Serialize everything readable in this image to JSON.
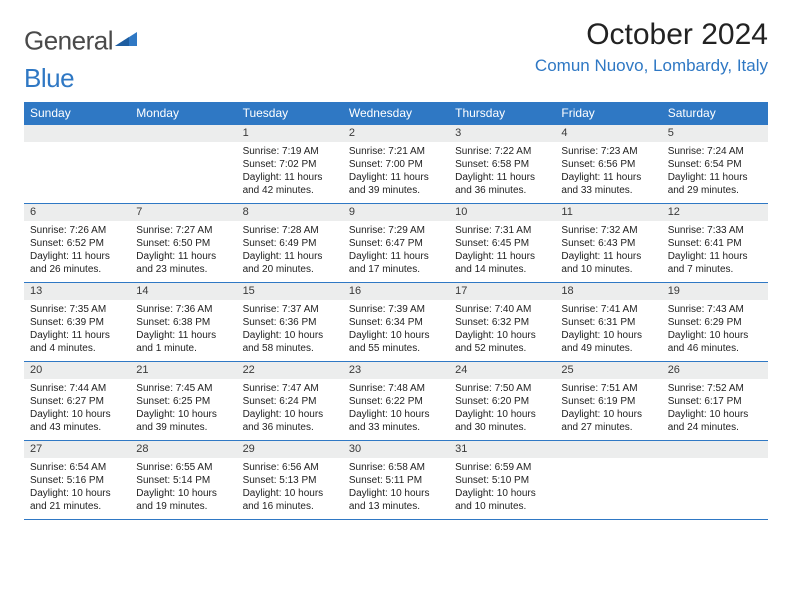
{
  "brand": {
    "name_a": "General",
    "name_b": "Blue"
  },
  "title": "October 2024",
  "location": "Comun Nuovo, Lombardy, Italy",
  "colors": {
    "header_bg": "#2f78c4",
    "header_text": "#ffffff",
    "daynum_bg": "#eceded",
    "border": "#2f78c4",
    "body_bg": "#ffffff",
    "text": "#000000",
    "title_text": "#222222",
    "location_text": "#2f78c4"
  },
  "typography": {
    "title_fontsize": 30,
    "location_fontsize": 17,
    "dow_fontsize": 12,
    "daynum_fontsize": 11,
    "body_fontsize": 10
  },
  "dow": [
    "Sunday",
    "Monday",
    "Tuesday",
    "Wednesday",
    "Thursday",
    "Friday",
    "Saturday"
  ],
  "weeks": [
    [
      {
        "n": "",
        "sunrise": "",
        "sunset": "",
        "daylight": ""
      },
      {
        "n": "",
        "sunrise": "",
        "sunset": "",
        "daylight": ""
      },
      {
        "n": "1",
        "sunrise": "Sunrise: 7:19 AM",
        "sunset": "Sunset: 7:02 PM",
        "daylight": "Daylight: 11 hours and 42 minutes."
      },
      {
        "n": "2",
        "sunrise": "Sunrise: 7:21 AM",
        "sunset": "Sunset: 7:00 PM",
        "daylight": "Daylight: 11 hours and 39 minutes."
      },
      {
        "n": "3",
        "sunrise": "Sunrise: 7:22 AM",
        "sunset": "Sunset: 6:58 PM",
        "daylight": "Daylight: 11 hours and 36 minutes."
      },
      {
        "n": "4",
        "sunrise": "Sunrise: 7:23 AM",
        "sunset": "Sunset: 6:56 PM",
        "daylight": "Daylight: 11 hours and 33 minutes."
      },
      {
        "n": "5",
        "sunrise": "Sunrise: 7:24 AM",
        "sunset": "Sunset: 6:54 PM",
        "daylight": "Daylight: 11 hours and 29 minutes."
      }
    ],
    [
      {
        "n": "6",
        "sunrise": "Sunrise: 7:26 AM",
        "sunset": "Sunset: 6:52 PM",
        "daylight": "Daylight: 11 hours and 26 minutes."
      },
      {
        "n": "7",
        "sunrise": "Sunrise: 7:27 AM",
        "sunset": "Sunset: 6:50 PM",
        "daylight": "Daylight: 11 hours and 23 minutes."
      },
      {
        "n": "8",
        "sunrise": "Sunrise: 7:28 AM",
        "sunset": "Sunset: 6:49 PM",
        "daylight": "Daylight: 11 hours and 20 minutes."
      },
      {
        "n": "9",
        "sunrise": "Sunrise: 7:29 AM",
        "sunset": "Sunset: 6:47 PM",
        "daylight": "Daylight: 11 hours and 17 minutes."
      },
      {
        "n": "10",
        "sunrise": "Sunrise: 7:31 AM",
        "sunset": "Sunset: 6:45 PM",
        "daylight": "Daylight: 11 hours and 14 minutes."
      },
      {
        "n": "11",
        "sunrise": "Sunrise: 7:32 AM",
        "sunset": "Sunset: 6:43 PM",
        "daylight": "Daylight: 11 hours and 10 minutes."
      },
      {
        "n": "12",
        "sunrise": "Sunrise: 7:33 AM",
        "sunset": "Sunset: 6:41 PM",
        "daylight": "Daylight: 11 hours and 7 minutes."
      }
    ],
    [
      {
        "n": "13",
        "sunrise": "Sunrise: 7:35 AM",
        "sunset": "Sunset: 6:39 PM",
        "daylight": "Daylight: 11 hours and 4 minutes."
      },
      {
        "n": "14",
        "sunrise": "Sunrise: 7:36 AM",
        "sunset": "Sunset: 6:38 PM",
        "daylight": "Daylight: 11 hours and 1 minute."
      },
      {
        "n": "15",
        "sunrise": "Sunrise: 7:37 AM",
        "sunset": "Sunset: 6:36 PM",
        "daylight": "Daylight: 10 hours and 58 minutes."
      },
      {
        "n": "16",
        "sunrise": "Sunrise: 7:39 AM",
        "sunset": "Sunset: 6:34 PM",
        "daylight": "Daylight: 10 hours and 55 minutes."
      },
      {
        "n": "17",
        "sunrise": "Sunrise: 7:40 AM",
        "sunset": "Sunset: 6:32 PM",
        "daylight": "Daylight: 10 hours and 52 minutes."
      },
      {
        "n": "18",
        "sunrise": "Sunrise: 7:41 AM",
        "sunset": "Sunset: 6:31 PM",
        "daylight": "Daylight: 10 hours and 49 minutes."
      },
      {
        "n": "19",
        "sunrise": "Sunrise: 7:43 AM",
        "sunset": "Sunset: 6:29 PM",
        "daylight": "Daylight: 10 hours and 46 minutes."
      }
    ],
    [
      {
        "n": "20",
        "sunrise": "Sunrise: 7:44 AM",
        "sunset": "Sunset: 6:27 PM",
        "daylight": "Daylight: 10 hours and 43 minutes."
      },
      {
        "n": "21",
        "sunrise": "Sunrise: 7:45 AM",
        "sunset": "Sunset: 6:25 PM",
        "daylight": "Daylight: 10 hours and 39 minutes."
      },
      {
        "n": "22",
        "sunrise": "Sunrise: 7:47 AM",
        "sunset": "Sunset: 6:24 PM",
        "daylight": "Daylight: 10 hours and 36 minutes."
      },
      {
        "n": "23",
        "sunrise": "Sunrise: 7:48 AM",
        "sunset": "Sunset: 6:22 PM",
        "daylight": "Daylight: 10 hours and 33 minutes."
      },
      {
        "n": "24",
        "sunrise": "Sunrise: 7:50 AM",
        "sunset": "Sunset: 6:20 PM",
        "daylight": "Daylight: 10 hours and 30 minutes."
      },
      {
        "n": "25",
        "sunrise": "Sunrise: 7:51 AM",
        "sunset": "Sunset: 6:19 PM",
        "daylight": "Daylight: 10 hours and 27 minutes."
      },
      {
        "n": "26",
        "sunrise": "Sunrise: 7:52 AM",
        "sunset": "Sunset: 6:17 PM",
        "daylight": "Daylight: 10 hours and 24 minutes."
      }
    ],
    [
      {
        "n": "27",
        "sunrise": "Sunrise: 6:54 AM",
        "sunset": "Sunset: 5:16 PM",
        "daylight": "Daylight: 10 hours and 21 minutes."
      },
      {
        "n": "28",
        "sunrise": "Sunrise: 6:55 AM",
        "sunset": "Sunset: 5:14 PM",
        "daylight": "Daylight: 10 hours and 19 minutes."
      },
      {
        "n": "29",
        "sunrise": "Sunrise: 6:56 AM",
        "sunset": "Sunset: 5:13 PM",
        "daylight": "Daylight: 10 hours and 16 minutes."
      },
      {
        "n": "30",
        "sunrise": "Sunrise: 6:58 AM",
        "sunset": "Sunset: 5:11 PM",
        "daylight": "Daylight: 10 hours and 13 minutes."
      },
      {
        "n": "31",
        "sunrise": "Sunrise: 6:59 AM",
        "sunset": "Sunset: 5:10 PM",
        "daylight": "Daylight: 10 hours and 10 minutes."
      },
      {
        "n": "",
        "sunrise": "",
        "sunset": "",
        "daylight": ""
      },
      {
        "n": "",
        "sunrise": "",
        "sunset": "",
        "daylight": ""
      }
    ]
  ]
}
